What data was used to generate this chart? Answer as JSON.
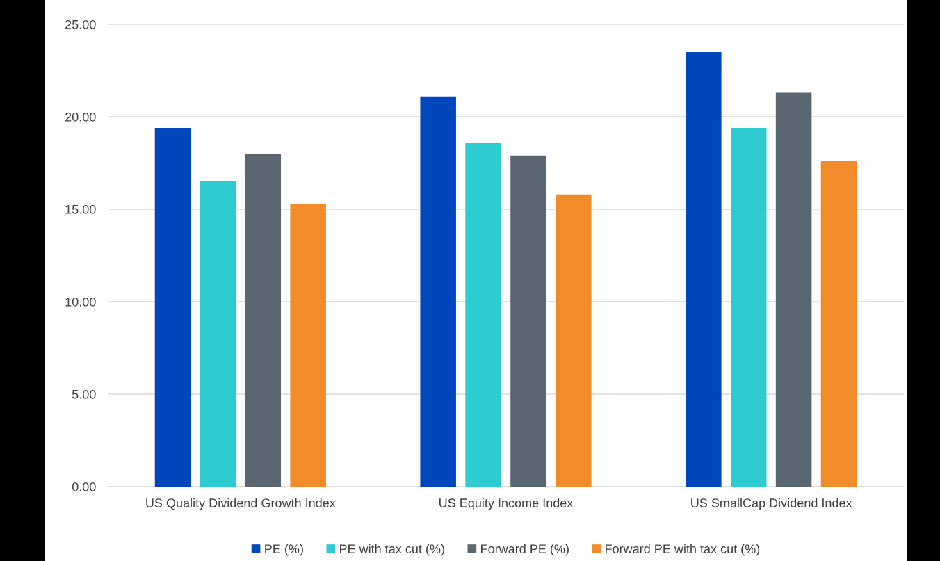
{
  "chart_data": {
    "type": "bar",
    "categories": [
      "US Quality Dividend Growth Index",
      "US Equity Income Index",
      "US SmallCap Dividend Index"
    ],
    "series": [
      {
        "name": "PE (%)",
        "color": "#0047bb",
        "values": [
          19.4,
          21.1,
          23.5
        ]
      },
      {
        "name": "PE with tax cut (%)",
        "color": "#2ecbd1",
        "values": [
          16.5,
          18.6,
          19.4
        ]
      },
      {
        "name": "Forward PE (%)",
        "color": "#5b6770",
        "values": [
          18.0,
          17.9,
          21.3
        ]
      },
      {
        "name": "Forward PE with tax cut (%)",
        "color": "#f28c2b",
        "values": [
          15.3,
          15.8,
          17.6
        ]
      }
    ],
    "ylim": [
      0,
      25
    ],
    "yticks": [
      {
        "value": 0,
        "label": "0.00"
      },
      {
        "value": 5,
        "label": "5.00"
      },
      {
        "value": 10,
        "label": "10.00"
      },
      {
        "value": 15,
        "label": "15.00"
      },
      {
        "value": 20,
        "label": "20.00"
      },
      {
        "value": 25,
        "label": "25.00"
      }
    ],
    "grid": "y",
    "legend": "bottom"
  }
}
